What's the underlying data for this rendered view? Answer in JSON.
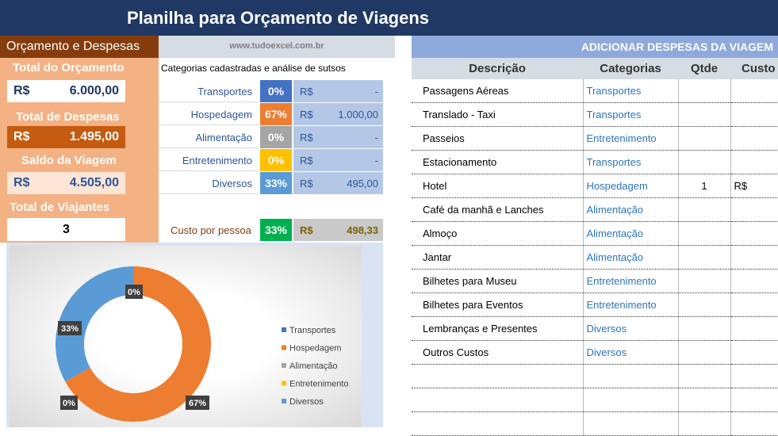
{
  "title": "Planilha para Orçamento de Viagens",
  "left_header": "Orçamento e Despesas",
  "site": "www.tudoexcel.com.br",
  "budget": {
    "total_label": "Total do Orçamento",
    "total_currency": "R$",
    "total_value": "6.000,00",
    "expenses_label": "Total de Despesas",
    "expenses_currency": "R$",
    "expenses_value": "1.495,00",
    "balance_label": "Saldo da Viagem",
    "balance_currency": "R$",
    "balance_value": "4.505,00",
    "travelers_label": "Total de Viajantes",
    "travelers_value": "3"
  },
  "categories_header": "Categorias cadastradas e análise de sutsos",
  "categories": [
    {
      "name": "Transportes",
      "pct": "0%",
      "currency": "R$",
      "value": "-",
      "color": "#4472c4"
    },
    {
      "name": "Hospedagem",
      "pct": "67%",
      "currency": "R$",
      "value": "1.000,00",
      "color": "#ed7d31"
    },
    {
      "name": "Alimentação",
      "pct": "0%",
      "currency": "R$",
      "value": "-",
      "color": "#a5a5a5"
    },
    {
      "name": "Entretenimento",
      "pct": "0%",
      "currency": "R$",
      "value": "-",
      "color": "#ffc000"
    },
    {
      "name": "Diversos",
      "pct": "33%",
      "currency": "R$",
      "value": "495,00",
      "color": "#5b9bd5"
    }
  ],
  "per_person": {
    "label": "Custo por pessoa",
    "pct": "33%",
    "currency": "R$",
    "value": "498,33",
    "color": "#00b050"
  },
  "chart_data": {
    "type": "pie",
    "style": "donut",
    "labels": [
      "Transportes",
      "Hospedagem",
      "Alimentação",
      "Entretenimento",
      "Diversos"
    ],
    "values": [
      0,
      67,
      0,
      0,
      33
    ],
    "data_labels": [
      "0%",
      "67%",
      "0%",
      "0%",
      "33%"
    ],
    "colors": [
      "#4472c4",
      "#ed7d31",
      "#a5a5a5",
      "#ffc000",
      "#5b9bd5"
    ],
    "legend": "right"
  },
  "expenses": {
    "header": "ADICIONAR DESPESAS DA VIAGEM",
    "columns": [
      "Descrição",
      "Categorias",
      "Qtde",
      "Custo"
    ],
    "rows": [
      {
        "desc": "Passagens Aéreas",
        "cat": "Transportes",
        "qty": "",
        "cost": ""
      },
      {
        "desc": "Translado - Taxi",
        "cat": "Transportes",
        "qty": "",
        "cost": ""
      },
      {
        "desc": "Passeios",
        "cat": "Entretenimento",
        "qty": "",
        "cost": ""
      },
      {
        "desc": "Estacionamento",
        "cat": "Transportes",
        "qty": "",
        "cost": ""
      },
      {
        "desc": "Hotel",
        "cat": "Hospedagem",
        "qty": "1",
        "cost": "R$"
      },
      {
        "desc": "Café da manhã e Lanches",
        "cat": "Alimentação",
        "qty": "",
        "cost": ""
      },
      {
        "desc": "Almoço",
        "cat": "Alimentação",
        "qty": "",
        "cost": ""
      },
      {
        "desc": "Jantar",
        "cat": "Alimentação",
        "qty": "",
        "cost": ""
      },
      {
        "desc": "Bilhetes para Museu",
        "cat": "Entretenimento",
        "qty": "",
        "cost": ""
      },
      {
        "desc": "Bilhetes para Eventos",
        "cat": "Entretenimento",
        "qty": "",
        "cost": ""
      },
      {
        "desc": "Lembranças e Presentes",
        "cat": "Diversos",
        "qty": "",
        "cost": ""
      },
      {
        "desc": "Outros Custos",
        "cat": "Diversos",
        "qty": "",
        "cost": ""
      },
      {
        "desc": "",
        "cat": "",
        "qty": "",
        "cost": ""
      },
      {
        "desc": "",
        "cat": "",
        "qty": "",
        "cost": ""
      },
      {
        "desc": "",
        "cat": "",
        "qty": "",
        "cost": ""
      }
    ]
  }
}
